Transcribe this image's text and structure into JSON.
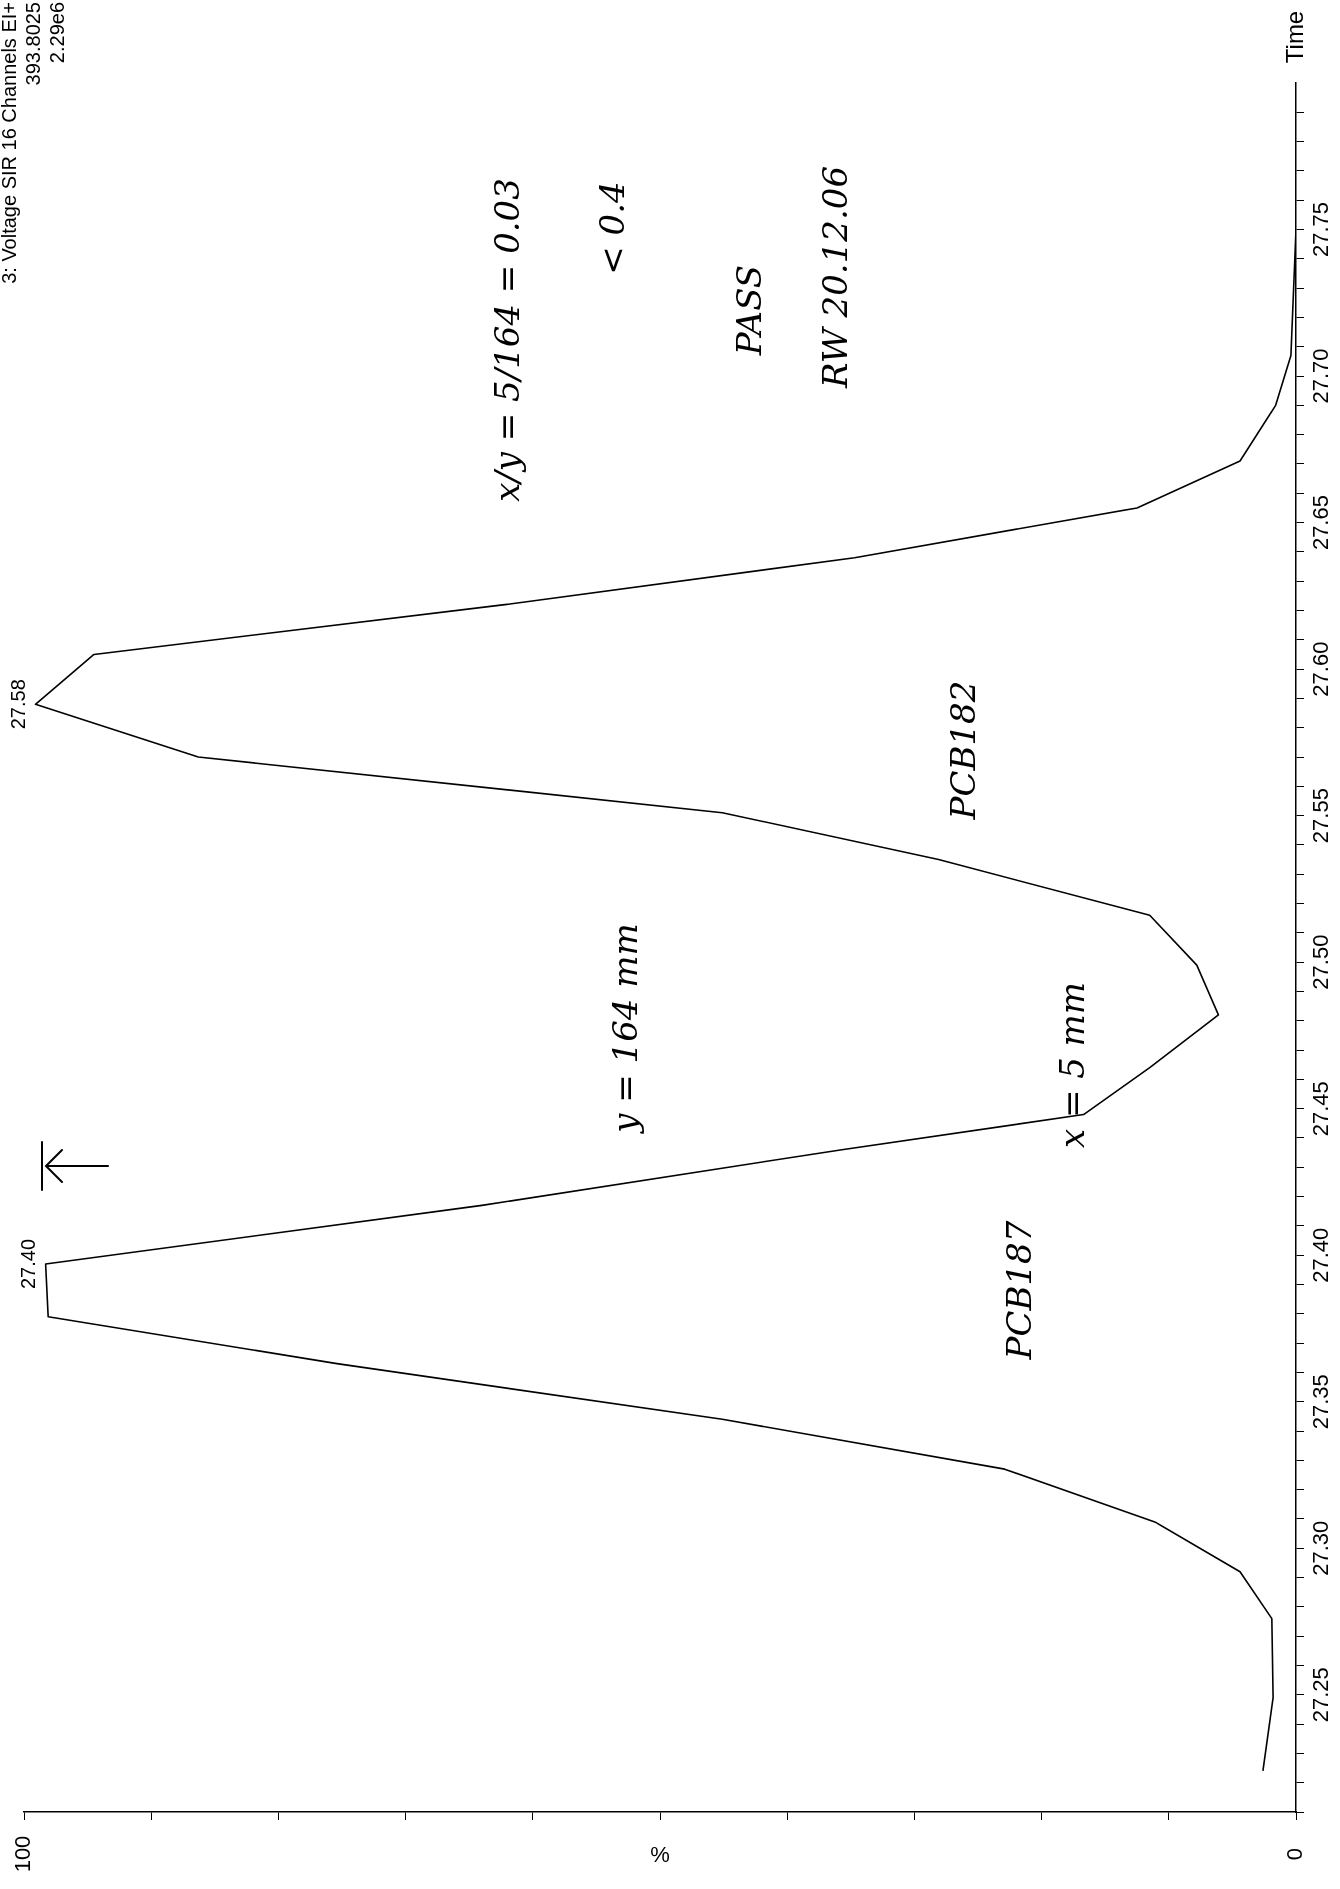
{
  "chart_data": {
    "type": "line",
    "title": "3: Voltage SIR 16 Channels EI+",
    "xlabel": "%",
    "ylabel": "Time",
    "series": [
      {
        "color": "#000000",
        "x": [
          2.6,
          1.8,
          1.9,
          4.4,
          11.1,
          22.9,
          45.1,
          75.4,
          98.1,
          98.3,
          64.0,
          35.7,
          16.7,
          11.5,
          6.1,
          7.8,
          11.5,
          28.1,
          45.1,
          86.3,
          99.1,
          94.5,
          62.2,
          34.7,
          12.5,
          4.4,
          1.6,
          0.4,
          0,
          0
        ],
        "values": [
          27.224,
          27.249,
          27.276,
          27.292,
          27.309,
          27.327,
          27.344,
          27.363,
          27.379,
          27.397,
          27.417,
          27.436,
          27.448,
          27.464,
          27.482,
          27.499,
          27.516,
          27.535,
          27.551,
          27.57,
          27.588,
          27.605,
          27.622,
          27.638,
          27.655,
          27.671,
          27.69,
          27.707,
          27.75,
          27.796
        ]
      }
    ],
    "xlim": [
      100,
      0
    ],
    "xticks": [
      0,
      {
        "value": 10,
        "label": null
      },
      {
        "value": 20,
        "label": null
      },
      {
        "value": 30,
        "label": null
      },
      {
        "value": 40,
        "label": null
      },
      {
        "value": 50,
        "label": null
      },
      {
        "value": 60,
        "label": null
      },
      {
        "value": 70,
        "label": null
      },
      {
        "value": 80,
        "label": null
      },
      {
        "value": 90,
        "label": null
      },
      100
    ],
    "ylim": [
      27.21,
      27.8
    ],
    "yticks": [
      {
        "value": 27.21,
        "label": null
      },
      {
        "value": 27.22,
        "label": null
      },
      {
        "value": 27.23,
        "label": null
      },
      {
        "value": 27.24,
        "label": null
      },
      {
        "value": 27.25,
        "label": "27.25"
      },
      {
        "value": 27.26,
        "label": null
      },
      {
        "value": 27.27,
        "label": null
      },
      {
        "value": 27.28,
        "label": null
      },
      {
        "value": 27.29,
        "label": null
      },
      {
        "value": 27.3,
        "label": "27.30"
      },
      {
        "value": 27.31,
        "label": null
      },
      {
        "value": 27.32,
        "label": null
      },
      {
        "value": 27.33,
        "label": null
      },
      {
        "value": 27.34,
        "label": null
      },
      {
        "value": 27.35,
        "label": "27.35"
      },
      {
        "value": 27.36,
        "label": null
      },
      {
        "value": 27.37,
        "label": null
      },
      {
        "value": 27.38,
        "label": null
      },
      {
        "value": 27.39,
        "label": null
      },
      {
        "value": 27.4,
        "label": "27.40"
      },
      {
        "value": 27.41,
        "label": null
      },
      {
        "value": 27.42,
        "label": null
      },
      {
        "value": 27.43,
        "label": null
      },
      {
        "value": 27.44,
        "label": null
      },
      {
        "value": 27.45,
        "label": "27.45"
      },
      {
        "value": 27.46,
        "label": null
      },
      {
        "value": 27.47,
        "label": null
      },
      {
        "value": 27.48,
        "label": null
      },
      {
        "value": 27.49,
        "label": null
      },
      {
        "value": 27.5,
        "label": "27.50"
      },
      {
        "value": 27.51,
        "label": null
      },
      {
        "value": 27.52,
        "label": null
      },
      {
        "value": 27.53,
        "label": null
      },
      {
        "value": 27.54,
        "label": null
      },
      {
        "value": 27.55,
        "label": "27.55"
      },
      {
        "value": 27.56,
        "label": null
      },
      {
        "value": 27.57,
        "label": null
      },
      {
        "value": 27.58,
        "label": null
      },
      {
        "value": 27.59,
        "label": null
      },
      {
        "value": 27.6,
        "label": "27.60"
      },
      {
        "value": 27.61,
        "label": null
      },
      {
        "value": 27.62,
        "label": null
      },
      {
        "value": 27.63,
        "label": null
      },
      {
        "value": 27.64,
        "label": null
      },
      {
        "value": 27.65,
        "label": "27.65"
      },
      {
        "value": 27.66,
        "label": null
      },
      {
        "value": 27.67,
        "label": null
      },
      {
        "value": 27.68,
        "label": null
      },
      {
        "value": 27.69,
        "label": null
      },
      {
        "value": 27.7,
        "label": "27.70"
      },
      {
        "value": 27.71,
        "label": null
      },
      {
        "value": 27.72,
        "label": null
      },
      {
        "value": 27.73,
        "label": null
      },
      {
        "value": 27.74,
        "label": null
      },
      {
        "value": 27.75,
        "label": "27.75"
      },
      {
        "value": 27.76,
        "label": null
      },
      {
        "value": 27.77,
        "label": null
      },
      {
        "value": 27.78,
        "label": null
      },
      {
        "value": 27.79,
        "label": null
      }
    ],
    "grid": false,
    "legend": false,
    "marker": "none",
    "line_style": "solid",
    "annotations": [
      {
        "text": "27.40",
        "x": 98.3,
        "y": 27.397
      },
      {
        "text": "27.58",
        "x": 99.1,
        "y": 27.588
      },
      "x/y = 5/164 = 0.03",
      "< 0.4",
      "PASS",
      "RW 20.12.06",
      "PCB182",
      "PCB187",
      "y = 164 mm",
      "x = 5 mm",
      "393.8025",
      "2.29e6"
    ]
  }
}
